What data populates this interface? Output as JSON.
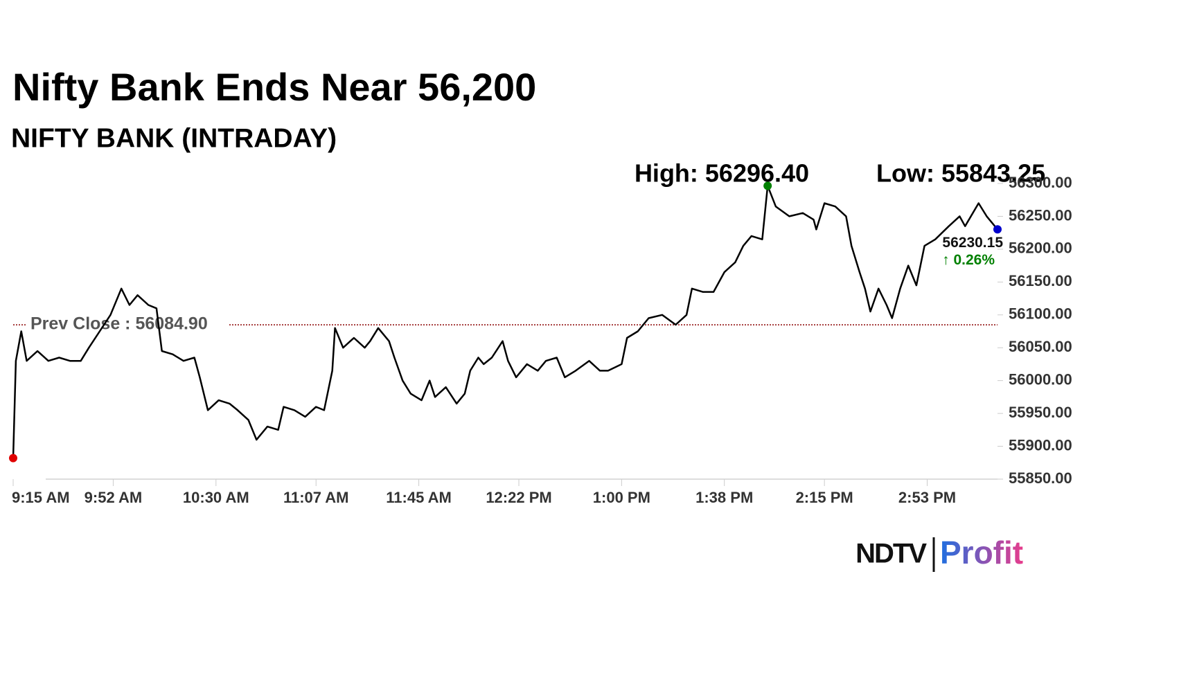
{
  "chart_data": {
    "type": "line",
    "title": "Nifty Bank Ends Near 56,200",
    "subtitle": "NIFTY BANK (INTRADAY)",
    "x": [
      0,
      1,
      3,
      5,
      9,
      13,
      17,
      21,
      25,
      28,
      32,
      36,
      40,
      43,
      46,
      50,
      53,
      55,
      59,
      63,
      67,
      69,
      72,
      76,
      80,
      83,
      87,
      90,
      94,
      98,
      100,
      104,
      108,
      112,
      115,
      118,
      119,
      122,
      126,
      130,
      132,
      135,
      139,
      141,
      144,
      147,
      151,
      154,
      156,
      160,
      164,
      167,
      169,
      172,
      174,
      177,
      181,
      183,
      186,
      190,
      194,
      197,
      201,
      204,
      208,
      213,
      217,
      220,
      225,
      227,
      231,
      235,
      240,
      245,
      249,
      251,
      255,
      259,
      263,
      267,
      270,
      273,
      277,
      279,
      282,
      287,
      292,
      296,
      297,
      300,
      304,
      308,
      310,
      313,
      315,
      317,
      320,
      323,
      325,
      328,
      331,
      334,
      337,
      341,
      346,
      350,
      352,
      357,
      360,
      364
    ],
    "values": [
      55882,
      56030,
      56075,
      56030,
      56045,
      56030,
      56035,
      56030,
      56030,
      56050,
      56075,
      56100,
      56140,
      56115,
      56130,
      56115,
      56110,
      56045,
      56040,
      56030,
      56035,
      56005,
      55955,
      55970,
      55965,
      55955,
      55940,
      55910,
      55930,
      55925,
      55960,
      55955,
      55945,
      55960,
      55955,
      56015,
      56080,
      56050,
      56065,
      56050,
      56060,
      56080,
      56060,
      56035,
      56000,
      55980,
      55970,
      56000,
      55975,
      55990,
      55965,
      55980,
      56015,
      56035,
      56025,
      56035,
      56060,
      56030,
      56005,
      56025,
      56015,
      56030,
      56035,
      56005,
      56015,
      56030,
      56015,
      56015,
      56025,
      56065,
      56075,
      56095,
      56100,
      56085,
      56100,
      56140,
      56135,
      56135,
      56165,
      56180,
      56205,
      56220,
      56215,
      56296.4,
      56265,
      56250,
      56255,
      56245,
      56230,
      56270,
      56265,
      56250,
      56205,
      56165,
      56140,
      56105,
      56140,
      56115,
      56095,
      56140,
      56175,
      56145,
      56205,
      56215,
      56235,
      56250,
      56235,
      56270,
      56250,
      56230.15
    ],
    "color": "#000000",
    "xlim": [
      0,
      364
    ],
    "ylim": [
      55850,
      56300
    ],
    "xticks": [
      {
        "value": 0,
        "label": "9:15 AM"
      },
      {
        "value": 37,
        "label": "9:52 AM"
      },
      {
        "value": 75,
        "label": "10:30 AM"
      },
      {
        "value": 112,
        "label": "11:07 AM"
      },
      {
        "value": 150,
        "label": "11:45 AM"
      },
      {
        "value": 187,
        "label": "12:22 PM"
      },
      {
        "value": 225,
        "label": "1:00 PM"
      },
      {
        "value": 263,
        "label": "1:38 PM"
      },
      {
        "value": 300,
        "label": "2:15 PM"
      },
      {
        "value": 338,
        "label": "2:53 PM"
      }
    ],
    "yticks": [
      {
        "value": 56300,
        "label": "56300.00"
      },
      {
        "value": 56250,
        "label": "56250.00"
      },
      {
        "value": 56200,
        "label": "56200.00"
      },
      {
        "value": 56150,
        "label": "56150.00"
      },
      {
        "value": 56100,
        "label": "56100.00"
      },
      {
        "value": 56050,
        "label": "56050.00"
      },
      {
        "value": 56000,
        "label": "56000.00"
      },
      {
        "value": 55950,
        "label": "55950.00"
      },
      {
        "value": 55900,
        "label": "55900.00"
      },
      {
        "value": 55850,
        "label": "55850.00"
      }
    ],
    "reference_line": {
      "label": "Prev Close : 56084.90",
      "value": 56084.9,
      "color": "#8b0000"
    },
    "high_label": "High: 56296.40",
    "low_label": "Low: 55843.25",
    "change_label": "↑ 0.26%",
    "start_color": "#e00000",
    "high_color": "#008000",
    "end_color": "#0000cc",
    "change_color": "#008000",
    "logo": {
      "left": "NDTV",
      "right": "Profit"
    }
  }
}
